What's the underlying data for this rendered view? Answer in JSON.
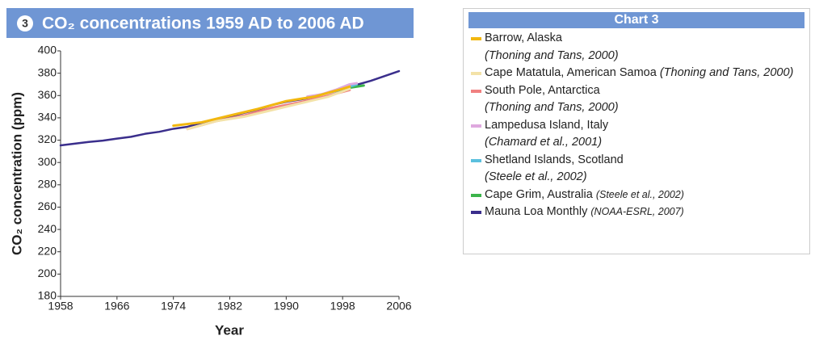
{
  "chart_data": {
    "type": "line",
    "badge": "3",
    "title": "CO₂ concentrations 1959 AD to 2006 AD",
    "xlabel": "Year",
    "ylabel": "CO₂ concentration (ppm)",
    "legend_title": "Chart 3",
    "xlim": [
      1958,
      2006
    ],
    "xticks": [
      1958,
      1966,
      1974,
      1982,
      1990,
      1998,
      2006
    ],
    "ylim": [
      180,
      400
    ],
    "yticks": [
      180,
      200,
      220,
      240,
      260,
      280,
      300,
      320,
      340,
      360,
      380,
      400
    ],
    "series": [
      {
        "name": "Barrow, Alaska",
        "source": "(Thoning and Tans, 2000)",
        "color": "#f2b70f",
        "x": [
          1974,
          1978,
          1982,
          1986,
          1990,
          1994,
          1998,
          1999
        ],
        "values": [
          333,
          336,
          342,
          348,
          355,
          359,
          366,
          368
        ]
      },
      {
        "name": "Cape Matatula, American Samoa",
        "source": "(Thoning and Tans, 2000)",
        "color": "#f3e2a8",
        "x": [
          1976,
          1980,
          1984,
          1988,
          1992,
          1996,
          1999
        ],
        "values": [
          330,
          337,
          341,
          347,
          353,
          359,
          366
        ]
      },
      {
        "name": "South Pole, Antarctica",
        "source": "(Thoning and Tans, 2000)",
        "color": "#f08080",
        "x": [
          1976,
          1980,
          1984,
          1988,
          1992,
          1996,
          1999
        ],
        "values": [
          330,
          337,
          342,
          349,
          354,
          360,
          365
        ]
      },
      {
        "name": "Lampedusa Island, Italy",
        "source": "(Chamard et al., 2001)",
        "color": "#dfa8df",
        "x": [
          1993,
          1995,
          1997,
          1999,
          2000
        ],
        "values": [
          359,
          361,
          365,
          370,
          371
        ]
      },
      {
        "name": "Shetland Islands, Scotland",
        "source": "(Steele et al., 2002)",
        "color": "#5bc0de",
        "x": [
          1993,
          1995,
          1997,
          1999,
          2000
        ],
        "values": [
          358,
          361,
          364,
          368,
          370
        ]
      },
      {
        "name": "Cape Grim, Australia",
        "source": "(Steele et al., 2002)",
        "color": "#3cb44b",
        "x": [
          1997,
          1999,
          2001
        ],
        "values": [
          364,
          367,
          369
        ]
      },
      {
        "name": "Mauna Loa Monthly",
        "source": "(NOAA-ESRL, 2007)",
        "color": "#3a2e8c",
        "x": [
          1958,
          1960,
          1962,
          1964,
          1966,
          1968,
          1970,
          1972,
          1974,
          1976,
          1978,
          1980,
          1982,
          1984,
          1986,
          1988,
          1990,
          1992,
          1994,
          1996,
          1998,
          2000,
          2002,
          2004,
          2006
        ],
        "values": [
          315.3,
          316.9,
          318.4,
          319.6,
          321.4,
          323.0,
          325.7,
          327.5,
          330.2,
          332.0,
          335.4,
          338.7,
          341.1,
          344.4,
          347.4,
          351.5,
          354.4,
          356.4,
          358.8,
          362.6,
          366.7,
          369.6,
          373.2,
          377.5,
          381.9
        ]
      }
    ]
  }
}
